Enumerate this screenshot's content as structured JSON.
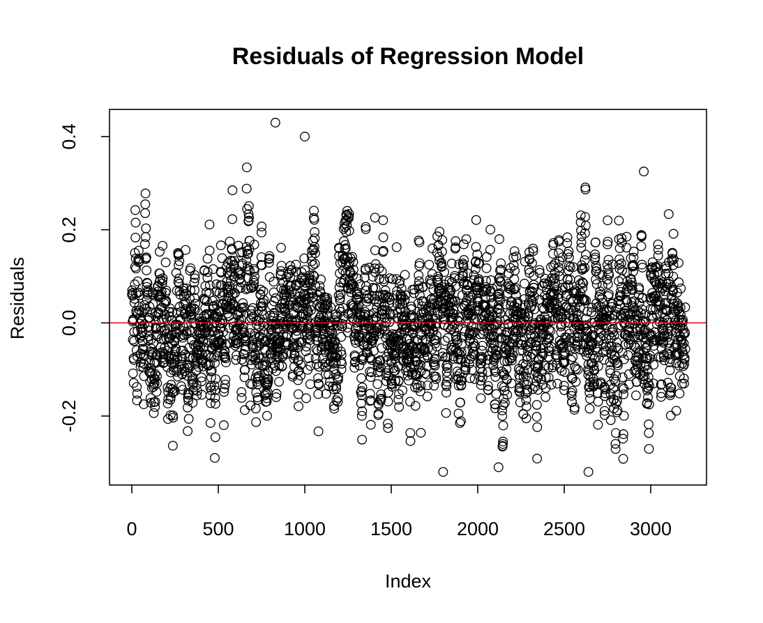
{
  "chart_data": {
    "type": "scatter",
    "title": "Residuals of Regression Model",
    "xlabel": "Index",
    "ylabel": "Residuals",
    "xlim": [
      -260,
      3200
    ],
    "ylim": [
      -0.35,
      0.45
    ],
    "x_ticks": [
      0,
      500,
      1000,
      1500,
      2000,
      2500,
      3000
    ],
    "x_tick_labels": [
      "0",
      "500",
      "1000",
      "1500",
      "2000",
      "2500",
      "3000"
    ],
    "y_ticks": [
      -0.2,
      0.0,
      0.2,
      0.4
    ],
    "y_tick_labels": [
      "-0.2",
      "0.0",
      "0.2",
      "0.4"
    ],
    "reference_line": {
      "y": 0,
      "color": "#ff0000"
    },
    "n_points": 3200,
    "marker": "open-circle",
    "point_color": "#000000",
    "residual_distribution": {
      "mean": 0.0,
      "approx_sd": 0.09,
      "min": -0.32,
      "max": 0.43
    },
    "notable_points": [
      {
        "x": 830,
        "y": 0.43
      },
      {
        "x": 1000,
        "y": 0.4
      },
      {
        "x": 2960,
        "y": 0.325
      },
      {
        "x": 1800,
        "y": -0.32
      },
      {
        "x": 2640,
        "y": -0.32
      },
      {
        "x": 480,
        "y": -0.29
      },
      {
        "x": 2120,
        "y": -0.31
      }
    ],
    "grid": false,
    "legend": "none"
  }
}
